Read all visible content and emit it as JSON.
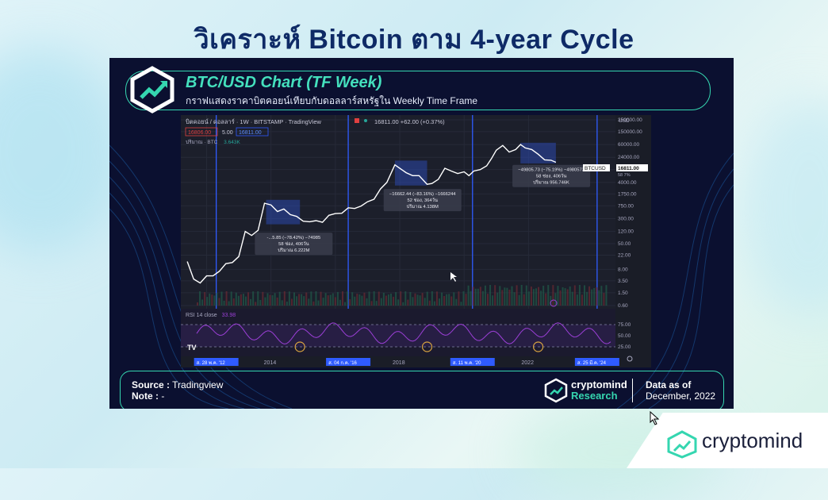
{
  "page_title": "วิเคราะห์ Bitcoin ตาม 4-year Cycle",
  "panel": {
    "chart_title": "BTC/USD Chart (TF Week)",
    "chart_subtitle": "กราฟแสดงราคาบิตคอยน์เทียบกับดอลลาร์สหรัฐใน Weekly Time Frame",
    "footer": {
      "source_label": "Source :",
      "source_value": "Tradingview",
      "note_label": "Note :",
      "note_value": "-",
      "brand_name": "cryptomind",
      "brand_sub": "Research",
      "data_as_of_label": "Data as of",
      "data_as_of_value": "December, 2022"
    }
  },
  "corner_brand": "cryptomind",
  "colors": {
    "title": "#0e2a66",
    "accent_teal": "#35d6b0",
    "panel_bg": "#0b1030",
    "price_line": "#ffffff",
    "cycle_line": "#2f5bff",
    "rsi_line": "#9b3fd6",
    "drawdown_box": "#2f4fc7"
  },
  "chart_data": {
    "type": "line",
    "header": {
      "symbol": "บิตคอยน์ / ดอลลาร์ · 1W · BITSTAMP · TradingView",
      "price_info": "16811.00 +62.00 (+0.37%)",
      "bid": "16806.00",
      "spread": "5.00",
      "ask": "16811.00",
      "volume_label": "ปริมาณ · BTC",
      "volume_value": "3.643K",
      "currency": "USD"
    },
    "log_scale": true,
    "y_ticks": [
      "350000.00",
      "150000.00",
      "60000.00",
      "24000.00",
      "10000.00",
      "4000.00",
      "1750.00",
      "750.00",
      "300.00",
      "120.00",
      "50.00",
      "22.00",
      "8.00",
      "3.50",
      "1.50",
      "0.60"
    ],
    "x_ticks": [
      "2012",
      "2014",
      "2016",
      "2018",
      "2020",
      "2022"
    ],
    "cycle_dates": [
      "ส. 28 พ.ค. '12",
      "ส. 04 ก.ค. '16",
      "ส. 11 พ.ค. '20",
      "ส. 25 มี.ค. '24"
    ],
    "current_price_tag": {
      "symbol": "BTCUSD",
      "price": "16811.00",
      "sub": "58 7%"
    },
    "annotations": [
      {
        "line1": "-...5.85 (−78.42%) −74985",
        "line2": "58 ช่อง, 406วัน",
        "line3": "ปริมาณ 6.222M"
      },
      {
        "line1": "−16662.44 (−83.16%) −1666244",
        "line2": "52 ช่อง, 364วัน",
        "line3": "ปริมาณ 4.138M"
      },
      {
        "line1": "−49805.73 (−75.19%) −4980573",
        "line2": "58 ช่อง, 406วัน",
        "line3": "ปริมาณ 956.746K"
      }
    ],
    "rsi": {
      "label": "RSI 14 close",
      "value": "33.98",
      "ticks": [
        "75.00",
        "50.00",
        "25.00"
      ]
    },
    "series": [
      {
        "x": [
          2011.5,
          2011.7,
          2011.9,
          2012.1,
          2012.3,
          2012.5,
          2012.7,
          2012.9,
          2013.1,
          2013.3,
          2013.5,
          2013.7,
          2013.9,
          2014.1,
          2014.3,
          2014.5,
          2014.7,
          2014.9,
          2015.1,
          2015.3,
          2015.5,
          2015.7,
          2015.9,
          2016.1,
          2016.3,
          2016.5,
          2016.7,
          2016.9,
          2017.1,
          2017.3,
          2017.5,
          2017.7,
          2017.95,
          2018.1,
          2018.3,
          2018.5,
          2018.7,
          2018.95,
          2019.1,
          2019.3,
          2019.5,
          2019.7,
          2019.9,
          2020.1,
          2020.25,
          2020.4,
          2020.6,
          2020.8,
          2020.95,
          2021.1,
          2021.3,
          2021.5,
          2021.7,
          2021.85,
          2022.0,
          2022.2,
          2022.4,
          2022.6,
          2022.8,
          2022.95
        ],
        "values": [
          14,
          4,
          3,
          5,
          5,
          7,
          12,
          13,
          20,
          120,
          90,
          130,
          900,
          800,
          500,
          600,
          400,
          350,
          250,
          240,
          260,
          230,
          380,
          430,
          440,
          650,
          620,
          740,
          1000,
          1200,
          2500,
          4000,
          14000,
          11000,
          8000,
          6500,
          6500,
          3500,
          3700,
          5000,
          11000,
          9000,
          7500,
          8500,
          6500,
          9000,
          10000,
          13000,
          22000,
          40000,
          56000,
          35000,
          42000,
          60000,
          47000,
          42000,
          30000,
          20000,
          19500,
          16800
        ]
      }
    ]
  }
}
